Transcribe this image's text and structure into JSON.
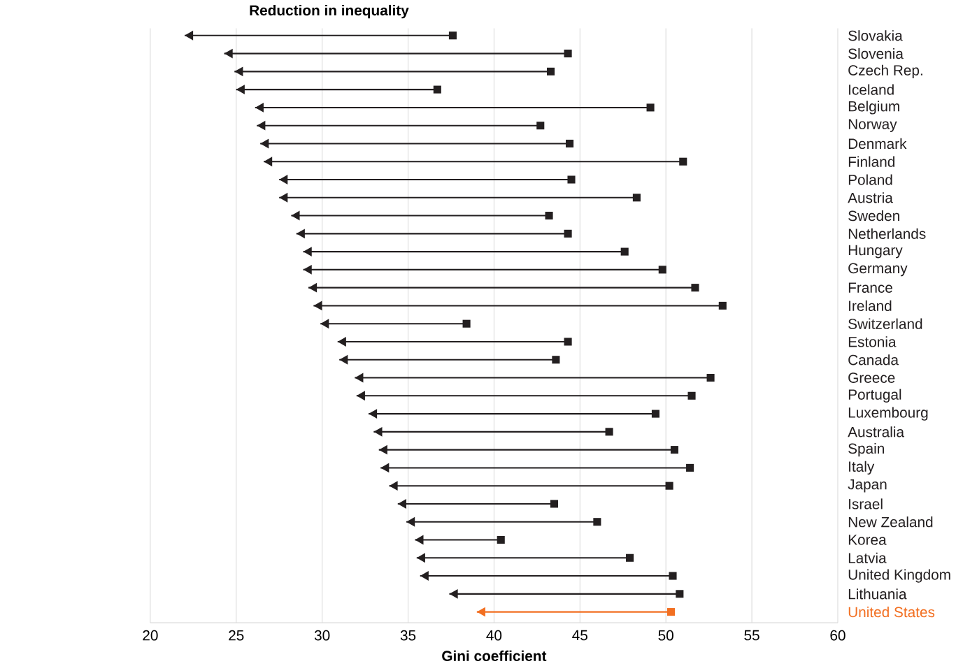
{
  "chart_data": {
    "type": "bar",
    "orientation": "horizontal",
    "title": "Reduction in inequality",
    "xlabel": "Gini coefficient",
    "categories": [
      "Slovakia",
      "Slovenia",
      "Czech Rep.",
      "Iceland",
      "Belgium",
      "Norway",
      "Denmark",
      "Finland",
      "Poland",
      "Austria",
      "Sweden",
      "Netherlands",
      "Hungary",
      "Germany",
      "France",
      "Ireland",
      "Switzerland",
      "Estonia",
      "Canada",
      "Greece",
      "Portugal",
      "Luxembourg",
      "Australia",
      "Spain",
      "Italy",
      "Japan",
      "Israel",
      "New Zealand",
      "Korea",
      "Latvia",
      "United Kingdom",
      "Lithuania",
      "United States"
    ],
    "base": [
      37.6,
      44.3,
      43.3,
      36.7,
      49.1,
      42.7,
      44.4,
      51.0,
      44.5,
      48.3,
      43.2,
      44.3,
      47.6,
      49.8,
      51.7,
      53.3,
      38.4,
      44.3,
      43.6,
      52.6,
      51.5,
      49.4,
      46.7,
      50.5,
      51.4,
      50.2,
      43.5,
      46.0,
      40.4,
      47.9,
      50.4,
      50.8,
      50.3
    ],
    "values": [
      -15.6,
      -20.0,
      -18.4,
      -11.7,
      -23.0,
      -16.5,
      -18.0,
      -24.4,
      -17.0,
      -20.8,
      -15.0,
      -15.8,
      -18.7,
      -20.9,
      -22.5,
      -23.8,
      -8.5,
      -13.4,
      -12.6,
      -20.7,
      -19.5,
      -16.7,
      -13.7,
      -17.2,
      -18.0,
      -16.3,
      -9.1,
      -11.1,
      -5.0,
      -12.4,
      -14.7,
      -13.4,
      -11.3
    ],
    "colors": [
      "#231f20",
      "#231f20",
      "#231f20",
      "#231f20",
      "#231f20",
      "#231f20",
      "#231f20",
      "#231f20",
      "#231f20",
      "#231f20",
      "#231f20",
      "#231f20",
      "#231f20",
      "#231f20",
      "#231f20",
      "#231f20",
      "#231f20",
      "#231f20",
      "#231f20",
      "#231f20",
      "#231f20",
      "#231f20",
      "#231f20",
      "#231f20",
      "#231f20",
      "#231f20",
      "#231f20",
      "#231f20",
      "#231f20",
      "#231f20",
      "#231f20",
      "#231f20",
      "#f26f21"
    ],
    "xlim": [
      20,
      60
    ],
    "xticks": [
      20,
      25,
      30,
      35,
      40,
      45,
      50,
      55,
      60
    ],
    "grid": "x"
  }
}
